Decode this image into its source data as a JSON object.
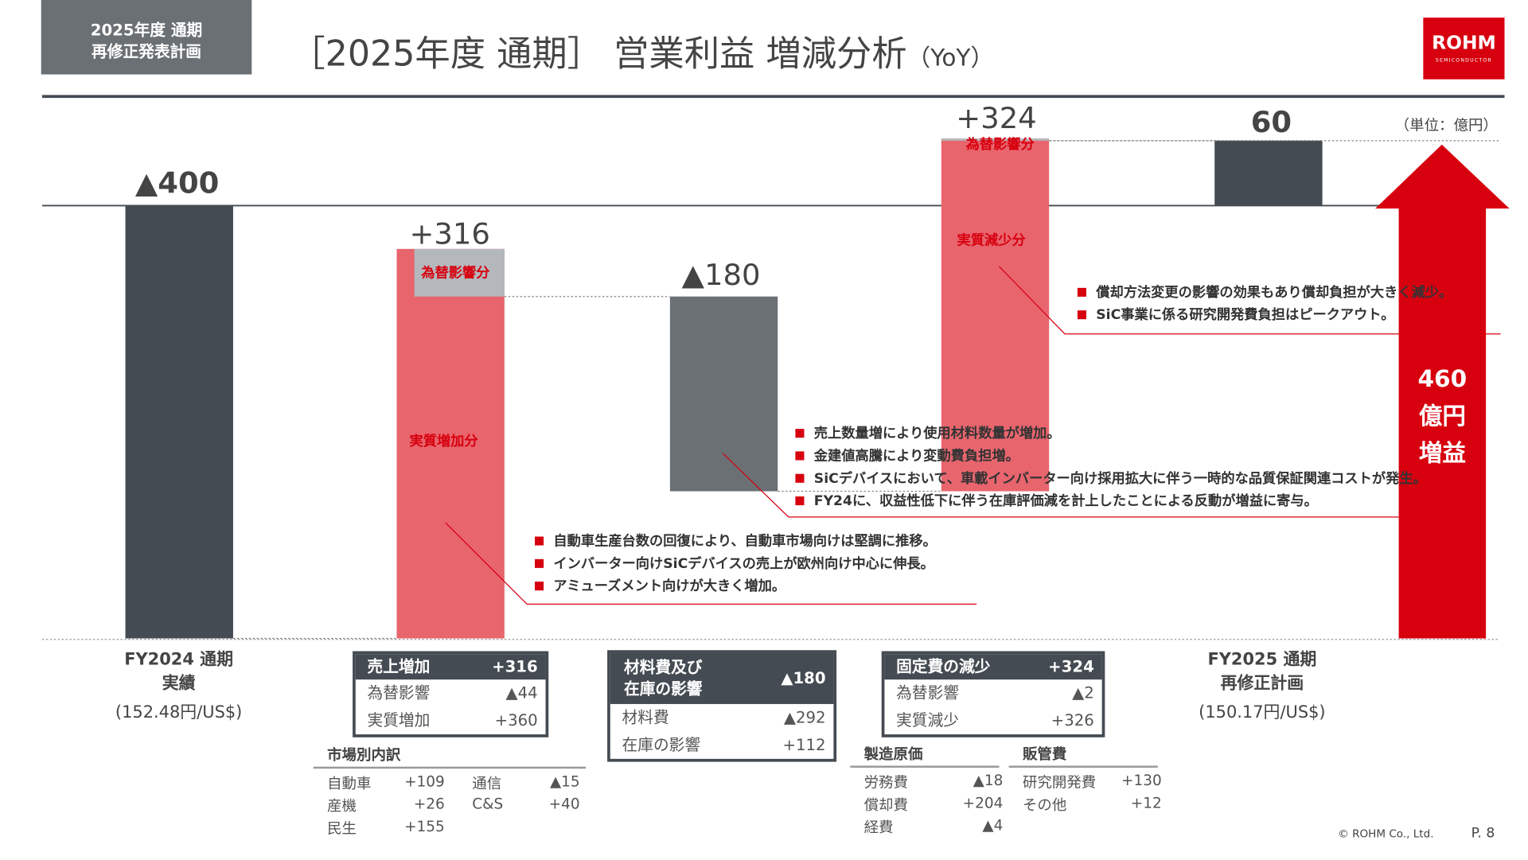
{
  "header": {
    "badge_line1": "2025年度 通期",
    "badge_line2": "再修正発表計画",
    "title": "［2025年度 通期］ 営業利益 増減分析",
    "title_suffix": "（YoY）",
    "logo": "ROHM",
    "logo_sub": "SEMICONDUCTOR",
    "unit": "（単位：億円）"
  },
  "chart_data": {
    "type": "waterfall",
    "unit": "億円",
    "colors": {
      "total": "#444b52",
      "increase": "#e8656e",
      "decrease": "#6b7075",
      "fx": "#b4b8bd",
      "arrow": "#d7000f"
    },
    "steps": [
      {
        "category": "FY2024 通期 実績",
        "type": "total",
        "value": -400,
        "label": "▲400"
      },
      {
        "category": "売上増加",
        "type": "delta",
        "value": 316,
        "label": "+316",
        "parts": [
          {
            "name": "実質増加分",
            "value": 360
          },
          {
            "name": "為替影響分",
            "value": -44
          }
        ]
      },
      {
        "category": "材料費及び在庫の影響",
        "type": "delta",
        "value": -180,
        "label": "▲180"
      },
      {
        "category": "固定費の減少",
        "type": "delta",
        "value": 324,
        "label": "+324",
        "parts": [
          {
            "name": "実質減少分",
            "value": 326
          },
          {
            "name": "為替影響分",
            "value": -2
          }
        ]
      },
      {
        "category": "FY2025 通期 再修正計画",
        "type": "total",
        "value": 60,
        "label": "60"
      }
    ],
    "arrow": {
      "value": 460,
      "line1": "460",
      "line2": "億円",
      "line3": "増益"
    }
  },
  "categories": {
    "fy24_l1": "FY2024 通期",
    "fy24_l2": "実績",
    "fy24_rate": "(152.48円/US$)",
    "fy25_l1": "FY2025 通期",
    "fy25_l2": "再修正計画",
    "fy25_rate": "(150.17円/US$)"
  },
  "seg_labels": {
    "sales_fx": "為替影響分",
    "sales_real": "実質増加分",
    "fixed_fx": "為替影響分",
    "fixed_real": "実質減少分"
  },
  "notes": {
    "fixed": [
      "償却方法変更の影響の効果もあり償却負担が大きく減少。",
      "SiC事業に係る研究開発費負担はピークアウト。"
    ],
    "materials": [
      "売上数量増により使用材料数量が増加。",
      "金建値高騰により変動費負担増。",
      "SiCデバイスにおいて、車載インバーター向け採用拡大に伴う一時的な品質保証関連コストが発生。",
      "FY24に、収益性低下に伴う在庫評価減を計上したことによる反動が増益に寄与。"
    ],
    "sales": [
      "自動車生産台数の回復により、自動車市場向けは堅調に推移。",
      "インバーター向けSiCデバイスの売上が欧州向け中心に伸長。",
      "アミューズメント向けが大きく増加。"
    ]
  },
  "tables": {
    "sales": {
      "title": "売上増加",
      "total": "+316",
      "rows": [
        [
          "為替影響",
          "▲44"
        ],
        [
          "実質増加",
          "+360"
        ]
      ]
    },
    "materials": {
      "title1": "材料費及び",
      "title2": "在庫の影響",
      "total": "▲180",
      "rows": [
        [
          "材料費",
          "▲292"
        ],
        [
          "在庫の影響",
          "+112"
        ]
      ]
    },
    "fixed": {
      "title": "固定費の減少",
      "total": "+324",
      "rows": [
        [
          "為替影響",
          "▲2"
        ],
        [
          "実質減少",
          "+326"
        ]
      ]
    }
  },
  "market": {
    "title": "市場別内訳",
    "rows": [
      [
        "自動車",
        "+109",
        "通信",
        "▲15"
      ],
      [
        "産機",
        "+26",
        "C&S",
        "+40"
      ],
      [
        "民生",
        "+155",
        "",
        ""
      ]
    ]
  },
  "cost": {
    "mfg_title": "製造原価",
    "mfg": [
      [
        "労務費",
        "▲18"
      ],
      [
        "償却費",
        "+204"
      ],
      [
        "経費",
        "▲4"
      ]
    ],
    "sga_title": "販管費",
    "sga": [
      [
        "研究開発費",
        "+130"
      ],
      [
        "その他",
        "+12"
      ]
    ]
  },
  "footer": {
    "copyright": "© ROHM Co., Ltd.",
    "page": "P. 8"
  }
}
